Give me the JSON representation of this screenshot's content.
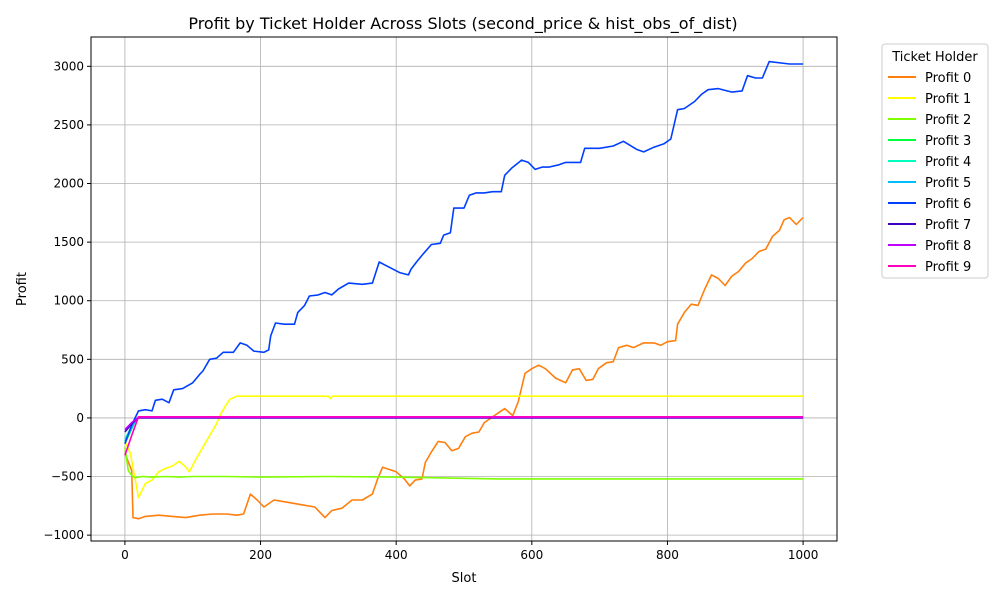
{
  "chart_data": {
    "type": "line",
    "title": "Profit by Ticket Holder Across Slots (second_price & hist_obs_of_dist)",
    "xlabel": "Slot",
    "ylabel": "Profit",
    "xlim": [
      -50,
      1050
    ],
    "ylim": [
      -1050,
      3250
    ],
    "x_ticks": [
      0,
      200,
      400,
      600,
      800,
      1000
    ],
    "y_ticks": [
      -1000,
      -500,
      0,
      500,
      1000,
      1500,
      2000,
      2500,
      3000
    ],
    "grid": true,
    "legend": {
      "title": "Ticket Holder",
      "placement": "outside-right"
    },
    "series": [
      {
        "name": "Profit 0",
        "color": "#ff7f0e",
        "points": [
          [
            0,
            -300
          ],
          [
            10,
            -450
          ],
          [
            12,
            -850
          ],
          [
            20,
            -860
          ],
          [
            30,
            -840
          ],
          [
            50,
            -830
          ],
          [
            70,
            -840
          ],
          [
            90,
            -850
          ],
          [
            110,
            -830
          ],
          [
            130,
            -820
          ],
          [
            150,
            -820
          ],
          [
            165,
            -830
          ],
          [
            175,
            -820
          ],
          [
            185,
            -650
          ],
          [
            195,
            -700
          ],
          [
            205,
            -760
          ],
          [
            220,
            -700
          ],
          [
            240,
            -720
          ],
          [
            260,
            -740
          ],
          [
            280,
            -760
          ],
          [
            295,
            -850
          ],
          [
            305,
            -790
          ],
          [
            320,
            -770
          ],
          [
            335,
            -700
          ],
          [
            350,
            -700
          ],
          [
            365,
            -650
          ],
          [
            372,
            -530
          ],
          [
            380,
            -420
          ],
          [
            390,
            -440
          ],
          [
            400,
            -460
          ],
          [
            412,
            -520
          ],
          [
            420,
            -580
          ],
          [
            428,
            -530
          ],
          [
            438,
            -520
          ],
          [
            443,
            -380
          ],
          [
            452,
            -290
          ],
          [
            462,
            -200
          ],
          [
            472,
            -210
          ],
          [
            482,
            -280
          ],
          [
            492,
            -260
          ],
          [
            502,
            -160
          ],
          [
            512,
            -130
          ],
          [
            522,
            -120
          ],
          [
            530,
            -40
          ],
          [
            540,
            0
          ],
          [
            550,
            40
          ],
          [
            560,
            80
          ],
          [
            572,
            20
          ],
          [
            580,
            140
          ],
          [
            590,
            380
          ],
          [
            600,
            420
          ],
          [
            610,
            450
          ],
          [
            620,
            420
          ],
          [
            635,
            340
          ],
          [
            650,
            300
          ],
          [
            660,
            410
          ],
          [
            670,
            420
          ],
          [
            680,
            320
          ],
          [
            690,
            330
          ],
          [
            698,
            420
          ],
          [
            710,
            470
          ],
          [
            720,
            480
          ],
          [
            728,
            600
          ],
          [
            740,
            620
          ],
          [
            750,
            600
          ],
          [
            765,
            640
          ],
          [
            780,
            640
          ],
          [
            790,
            620
          ],
          [
            800,
            650
          ],
          [
            812,
            660
          ],
          [
            815,
            800
          ],
          [
            825,
            900
          ],
          [
            835,
            970
          ],
          [
            845,
            960
          ],
          [
            855,
            1100
          ],
          [
            865,
            1220
          ],
          [
            875,
            1190
          ],
          [
            885,
            1130
          ],
          [
            895,
            1210
          ],
          [
            905,
            1250
          ],
          [
            915,
            1320
          ],
          [
            925,
            1360
          ],
          [
            935,
            1420
          ],
          [
            945,
            1440
          ],
          [
            955,
            1550
          ],
          [
            965,
            1600
          ],
          [
            972,
            1690
          ],
          [
            980,
            1710
          ],
          [
            990,
            1650
          ],
          [
            1000,
            1710
          ]
        ]
      },
      {
        "name": "Profit 1",
        "color": "#ffff00",
        "points": [
          [
            0,
            -200
          ],
          [
            8,
            -300
          ],
          [
            15,
            -520
          ],
          [
            20,
            -680
          ],
          [
            30,
            -560
          ],
          [
            40,
            -530
          ],
          [
            50,
            -460
          ],
          [
            60,
            -430
          ],
          [
            70,
            -410
          ],
          [
            80,
            -370
          ],
          [
            90,
            -420
          ],
          [
            95,
            -460
          ],
          [
            105,
            -350
          ],
          [
            115,
            -250
          ],
          [
            125,
            -150
          ],
          [
            135,
            -50
          ],
          [
            140,
            20
          ],
          [
            148,
            100
          ],
          [
            155,
            160
          ],
          [
            165,
            185
          ],
          [
            300,
            185
          ],
          [
            303,
            165
          ],
          [
            306,
            185
          ],
          [
            1000,
            185
          ]
        ]
      },
      {
        "name": "Profit 2",
        "color": "#7fff00",
        "points": [
          [
            0,
            -250
          ],
          [
            5,
            -450
          ],
          [
            10,
            -490
          ],
          [
            15,
            -510
          ],
          [
            25,
            -500
          ],
          [
            40,
            -505
          ],
          [
            60,
            -500
          ],
          [
            80,
            -505
          ],
          [
            100,
            -500
          ],
          [
            150,
            -500
          ],
          [
            200,
            -505
          ],
          [
            300,
            -500
          ],
          [
            400,
            -505
          ],
          [
            450,
            -510
          ],
          [
            550,
            -520
          ],
          [
            700,
            -520
          ],
          [
            1000,
            -520
          ]
        ]
      },
      {
        "name": "Profit 3",
        "color": "#00ff3f",
        "points": [
          [
            0,
            -220
          ],
          [
            15,
            -30
          ],
          [
            20,
            5
          ],
          [
            1000,
            5
          ]
        ]
      },
      {
        "name": "Profit 4",
        "color": "#00ffbf",
        "points": [
          [
            0,
            -180
          ],
          [
            15,
            -20
          ],
          [
            20,
            5
          ],
          [
            1000,
            5
          ]
        ]
      },
      {
        "name": "Profit 5",
        "color": "#00bfff",
        "points": [
          [
            0,
            -200
          ],
          [
            15,
            -25
          ],
          [
            20,
            5
          ],
          [
            1000,
            5
          ]
        ]
      },
      {
        "name": "Profit 6",
        "color": "#003fff",
        "points": [
          [
            0,
            -220
          ],
          [
            10,
            -60
          ],
          [
            20,
            60
          ],
          [
            30,
            70
          ],
          [
            40,
            60
          ],
          [
            45,
            150
          ],
          [
            55,
            160
          ],
          [
            65,
            130
          ],
          [
            72,
            240
          ],
          [
            85,
            250
          ],
          [
            100,
            300
          ],
          [
            110,
            370
          ],
          [
            115,
            400
          ],
          [
            125,
            500
          ],
          [
            135,
            510
          ],
          [
            145,
            560
          ],
          [
            160,
            560
          ],
          [
            170,
            640
          ],
          [
            180,
            620
          ],
          [
            190,
            570
          ],
          [
            205,
            560
          ],
          [
            212,
            580
          ],
          [
            215,
            700
          ],
          [
            222,
            810
          ],
          [
            235,
            800
          ],
          [
            250,
            800
          ],
          [
            255,
            900
          ],
          [
            265,
            960
          ],
          [
            272,
            1040
          ],
          [
            285,
            1050
          ],
          [
            295,
            1070
          ],
          [
            305,
            1050
          ],
          [
            315,
            1100
          ],
          [
            330,
            1150
          ],
          [
            350,
            1140
          ],
          [
            365,
            1150
          ],
          [
            375,
            1330
          ],
          [
            385,
            1300
          ],
          [
            395,
            1270
          ],
          [
            405,
            1240
          ],
          [
            418,
            1220
          ],
          [
            422,
            1270
          ],
          [
            430,
            1330
          ],
          [
            440,
            1400
          ],
          [
            452,
            1480
          ],
          [
            465,
            1490
          ],
          [
            470,
            1560
          ],
          [
            480,
            1580
          ],
          [
            485,
            1790
          ],
          [
            500,
            1790
          ],
          [
            508,
            1900
          ],
          [
            518,
            1920
          ],
          [
            530,
            1920
          ],
          [
            542,
            1930
          ],
          [
            555,
            1930
          ],
          [
            560,
            2070
          ],
          [
            570,
            2130
          ],
          [
            585,
            2200
          ],
          [
            595,
            2180
          ],
          [
            605,
            2120
          ],
          [
            615,
            2140
          ],
          [
            625,
            2140
          ],
          [
            640,
            2160
          ],
          [
            650,
            2180
          ],
          [
            672,
            2180
          ],
          [
            678,
            2300
          ],
          [
            700,
            2300
          ],
          [
            720,
            2320
          ],
          [
            735,
            2360
          ],
          [
            755,
            2290
          ],
          [
            765,
            2270
          ],
          [
            780,
            2310
          ],
          [
            795,
            2340
          ],
          [
            805,
            2380
          ],
          [
            815,
            2630
          ],
          [
            825,
            2640
          ],
          [
            840,
            2700
          ],
          [
            850,
            2760
          ],
          [
            860,
            2800
          ],
          [
            875,
            2810
          ],
          [
            895,
            2780
          ],
          [
            910,
            2790
          ],
          [
            918,
            2920
          ],
          [
            930,
            2900
          ],
          [
            940,
            2900
          ],
          [
            950,
            3040
          ],
          [
            980,
            3020
          ],
          [
            1000,
            3020
          ]
        ]
      },
      {
        "name": "Profit 7",
        "color": "#3f00bf",
        "points": [
          [
            0,
            -120
          ],
          [
            10,
            -50
          ],
          [
            20,
            0
          ],
          [
            1000,
            0
          ]
        ]
      },
      {
        "name": "Profit 8",
        "color": "#bf00ff",
        "points": [
          [
            0,
            -100
          ],
          [
            10,
            -40
          ],
          [
            20,
            5
          ],
          [
            1000,
            5
          ]
        ]
      },
      {
        "name": "Profit 9",
        "color": "#ff00bf",
        "points": [
          [
            0,
            -320
          ],
          [
            10,
            -150
          ],
          [
            20,
            10
          ],
          [
            1000,
            10
          ]
        ]
      }
    ]
  }
}
